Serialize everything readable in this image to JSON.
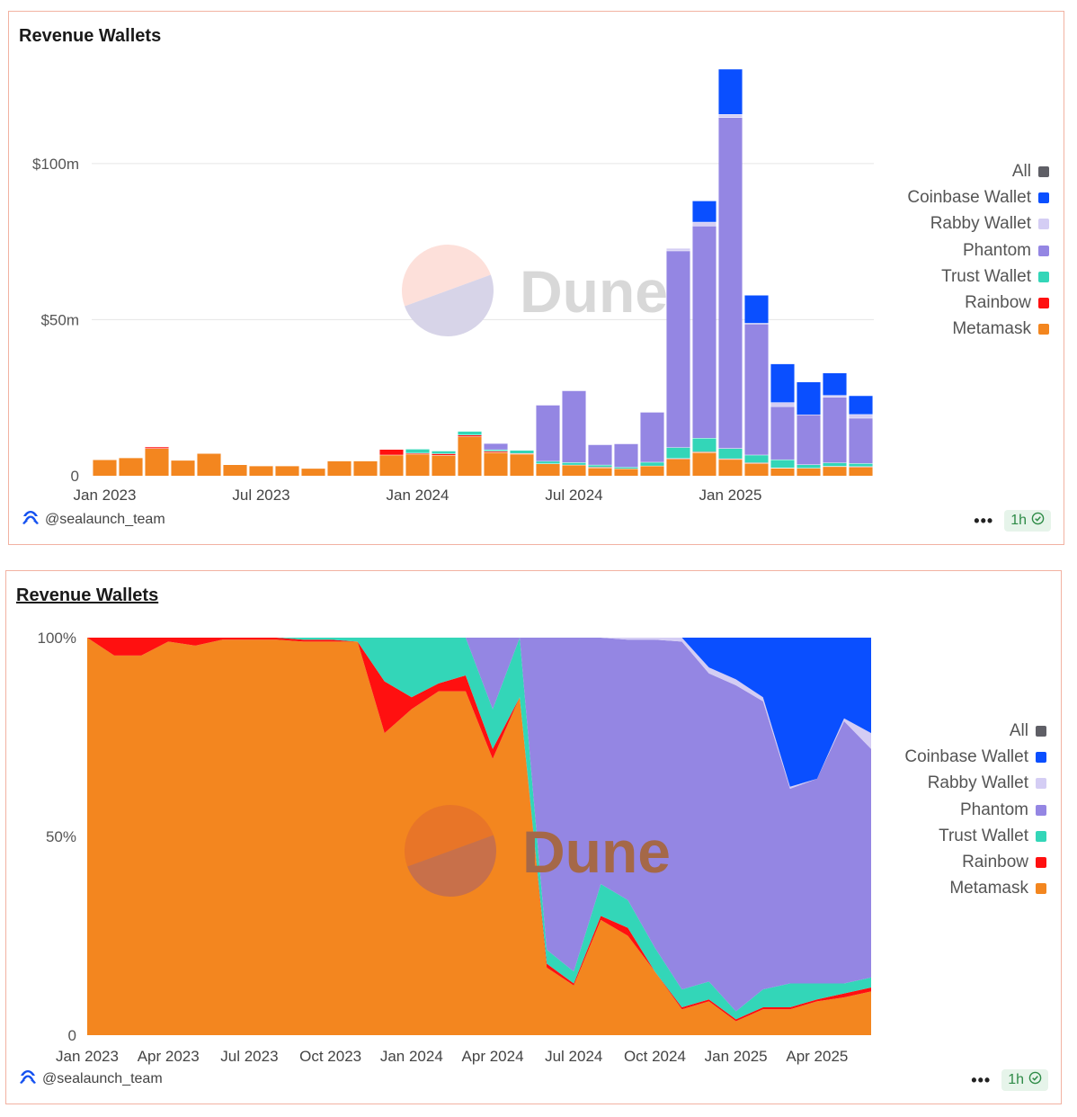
{
  "panels": [
    {
      "title": "Revenue Wallets",
      "author": "@sealaunch_team",
      "refresh": "1h",
      "more": "•••"
    },
    {
      "title": "Revenue Wallets",
      "author": "@sealaunch_team",
      "refresh": "1h",
      "more": "•••"
    }
  ],
  "watermark": "Dune",
  "legend": [
    {
      "name": "All",
      "color": "#5f5f66"
    },
    {
      "name": "Coinbase Wallet",
      "color": "#0a4fff"
    },
    {
      "name": "Rabby Wallet",
      "color": "#d4cdf4"
    },
    {
      "name": "Phantom",
      "color": "#9486e3"
    },
    {
      "name": "Trust Wallet",
      "color": "#33d6b8"
    },
    {
      "name": "Rainbow",
      "color": "#ff1010"
    },
    {
      "name": "Metamask",
      "color": "#f3861f"
    }
  ],
  "chart_data": [
    {
      "type": "bar",
      "stacked": true,
      "title": "Revenue Wallets",
      "x_start": "2023-01",
      "x_ticks": [
        "Jan 2023",
        "Jul 2023",
        "Jan 2024",
        "Jul 2024",
        "Jan 2025"
      ],
      "y_ticks": [
        "0",
        "$50m",
        "$100m"
      ],
      "ylim": [
        0,
        140
      ],
      "y_unit": "$m",
      "categories": [
        "2023-01",
        "2023-02",
        "2023-03",
        "2023-04",
        "2023-05",
        "2023-06",
        "2023-07",
        "2023-08",
        "2023-09",
        "2023-10",
        "2023-11",
        "2023-12",
        "2024-01",
        "2024-02",
        "2024-03",
        "2024-04",
        "2024-05",
        "2024-06",
        "2024-07",
        "2024-08",
        "2024-09",
        "2024-10",
        "2024-11",
        "2024-12",
        "2025-01",
        "2025-02",
        "2025-03",
        "2025-04",
        "2025-05",
        "2025-06"
      ],
      "series": [
        {
          "name": "Metamask",
          "values": [
            5.2,
            5.8,
            8.8,
            5,
            7.2,
            3.6,
            3.2,
            3.2,
            2.4,
            4.8,
            4.8,
            6.7,
            7,
            6.6,
            12.6,
            7.5,
            7,
            3.9,
            3.5,
            2.6,
            2.3,
            3.2,
            5.4,
            7.5,
            5.3,
            4,
            2.5,
            2.5,
            3,
            2.8
          ]
        },
        {
          "name": "Rainbow",
          "values": [
            0,
            0,
            0.5,
            0,
            0,
            0,
            0,
            0,
            0,
            0,
            0,
            1.8,
            0.3,
            0.5,
            0.5,
            0.4,
            0.2,
            0,
            0,
            0.2,
            0,
            0,
            0.2,
            0.2,
            0.2,
            0.2,
            0.1,
            0,
            0.1,
            0.2
          ]
        },
        {
          "name": "Trust Wallet",
          "values": [
            0,
            0,
            0,
            0,
            0,
            0,
            0,
            0,
            0,
            0,
            0,
            0,
            1.3,
            0.9,
            1.2,
            0.5,
            1,
            0.8,
            0.8,
            0.7,
            0.5,
            1.2,
            3.5,
            4.4,
            3.3,
            2.5,
            2.6,
            1.1,
            1.1,
            1
          ]
        },
        {
          "name": "Phantom",
          "values": [
            0,
            0,
            0,
            0,
            0,
            0,
            0,
            0,
            0,
            0,
            0,
            0,
            0,
            0,
            0,
            2,
            0,
            18,
            23,
            6.5,
            7.5,
            16,
            63,
            68,
            106,
            42,
            17,
            16,
            21,
            14.5
          ]
        },
        {
          "name": "Rabby Wallet",
          "values": [
            0,
            0,
            0,
            0,
            0,
            0,
            0,
            0,
            0,
            0,
            0,
            0,
            0,
            0,
            0,
            0,
            0,
            0,
            0,
            0,
            0,
            0,
            0.8,
            1.2,
            1,
            0.2,
            1.3,
            0,
            0.6,
            1.2
          ]
        },
        {
          "name": "Coinbase Wallet",
          "values": [
            0,
            0,
            0,
            0,
            0,
            0,
            0,
            0,
            0,
            0,
            0,
            0,
            0,
            0,
            0,
            0,
            0,
            0,
            0,
            0,
            0,
            0,
            0,
            6.8,
            14.5,
            9,
            12.4,
            10.5,
            7.2,
            6
          ]
        }
      ]
    },
    {
      "type": "area",
      "stacked": true,
      "normalized": true,
      "title": "Revenue Wallets",
      "x_start": "2023-01",
      "x_ticks": [
        "Jan 2023",
        "Apr 2023",
        "Jul 2023",
        "Oct 2023",
        "Jan 2024",
        "Apr 2024",
        "Jul 2024",
        "Oct 2024",
        "Jan 2025",
        "Apr 2025"
      ],
      "y_ticks": [
        "0",
        "50%",
        "100%"
      ],
      "ylim": [
        0,
        100
      ],
      "categories": [
        "2023-01",
        "2023-02",
        "2023-03",
        "2023-04",
        "2023-05",
        "2023-06",
        "2023-07",
        "2023-08",
        "2023-09",
        "2023-10",
        "2023-11",
        "2023-12",
        "2024-01",
        "2024-02",
        "2024-03",
        "2024-04",
        "2024-05",
        "2024-06",
        "2024-07",
        "2024-08",
        "2024-09",
        "2024-10",
        "2024-11",
        "2024-12",
        "2025-01",
        "2025-02",
        "2025-03",
        "2025-04",
        "2025-05",
        "2025-06"
      ],
      "series": [
        {
          "name": "Metamask",
          "values": [
            100,
            95.5,
            95.5,
            99,
            98,
            99.5,
            99.5,
            99.5,
            99,
            99,
            99,
            76,
            82,
            86.5,
            86.5,
            69.5,
            85,
            17,
            12.5,
            29,
            25,
            16,
            6.5,
            8.5,
            3.5,
            6.5,
            6.5,
            8.5,
            9.5,
            11
          ]
        },
        {
          "name": "Rainbow",
          "values": [
            0,
            4.5,
            4.5,
            1,
            2,
            0.5,
            0.5,
            0.5,
            0.5,
            0.5,
            0,
            13,
            3,
            2,
            4,
            2.5,
            0,
            1,
            0.5,
            1,
            2,
            0,
            0.5,
            0.5,
            0.5,
            0.5,
            0.5,
            0.5,
            1,
            1
          ]
        },
        {
          "name": "Trust Wallet",
          "values": [
            0,
            0,
            0,
            0,
            0,
            0,
            0,
            0,
            0.5,
            0.5,
            1,
            11,
            15,
            11.5,
            9.5,
            10,
            15,
            3.5,
            3,
            8,
            7,
            6,
            4.5,
            4.5,
            2,
            4.5,
            6,
            4,
            2.5,
            2.5
          ]
        },
        {
          "name": "Phantom",
          "values": [
            0,
            0,
            0,
            0,
            0,
            0,
            0,
            0,
            0,
            0,
            0,
            0,
            0,
            0,
            0,
            18,
            0,
            78.5,
            84,
            62,
            65.5,
            77.5,
            87.5,
            77.5,
            82,
            72.5,
            49,
            51.5,
            66,
            57.5
          ]
        },
        {
          "name": "Rabby Wallet",
          "values": [
            0,
            0,
            0,
            0,
            0,
            0,
            0,
            0,
            0,
            0,
            0,
            0,
            0,
            0,
            0,
            0,
            0,
            0,
            0,
            0,
            0.5,
            0.5,
            1,
            1.5,
            1.5,
            1,
            0.5,
            0,
            0.7,
            4
          ]
        },
        {
          "name": "Coinbase Wallet",
          "values": [
            0,
            0,
            0,
            0,
            0,
            0,
            0,
            0,
            0,
            0,
            0,
            0,
            0,
            0,
            0,
            0,
            0,
            0,
            0,
            0,
            0,
            0,
            0,
            7.5,
            10.5,
            15,
            37.5,
            35.5,
            20.3,
            24
          ]
        }
      ]
    }
  ]
}
